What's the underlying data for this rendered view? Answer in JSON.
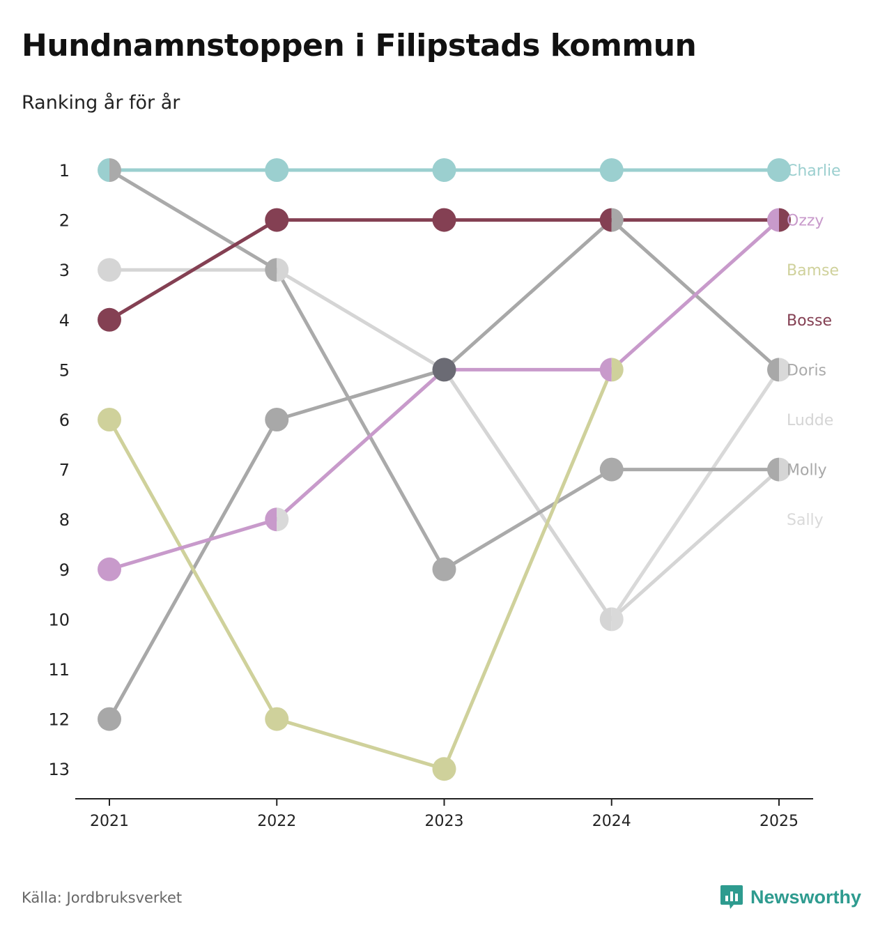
{
  "title": "Hundnamnstoppen i Filipstads kommun",
  "subtitle": "Ranking år för år",
  "source": "Källa: Jordbruksverket",
  "brand": {
    "name": "Newsworthy",
    "icon": "newsworthy-logo-icon",
    "color": "#2e9b8f"
  },
  "chart_data": {
    "type": "line",
    "subtype": "bump",
    "x": [
      "2021",
      "2022",
      "2023",
      "2024",
      "2025"
    ],
    "y_ticks": [
      "1",
      "2",
      "3",
      "4",
      "5",
      "6",
      "7",
      "8",
      "9",
      "10",
      "11",
      "12",
      "13"
    ],
    "ylim": [
      1,
      13
    ],
    "y_inverted": true,
    "xlabel": "",
    "ylabel": "",
    "legend": "right-end labels",
    "series": [
      {
        "name": "Charlie",
        "color": "#9bcfcf",
        "values": [
          1,
          1,
          1,
          1,
          1
        ]
      },
      {
        "name": "Ozzy",
        "color": "#c89acb",
        "values": [
          9,
          8,
          5,
          5,
          2
        ]
      },
      {
        "name": "Bamse",
        "color": "#cfd19b",
        "values": [
          6,
          12,
          13,
          5,
          null
        ]
      },
      {
        "name": "Bosse",
        "color": "#844053",
        "values": [
          4,
          2,
          2,
          2,
          2
        ]
      },
      {
        "name": "Doris",
        "color": "#aaaaaa",
        "values": [
          1,
          3,
          9,
          7,
          7
        ]
      },
      {
        "name": "Ludde",
        "color": "#d5d5d5",
        "values": [
          3,
          3,
          5,
          10,
          7
        ]
      },
      {
        "name": "Molly",
        "color": "#a8a8a8",
        "values": [
          12,
          6,
          5,
          2,
          5
        ]
      },
      {
        "name": "Sally",
        "color": "#d9d9d9",
        "values": [
          null,
          8,
          5,
          10,
          5
        ]
      }
    ],
    "tie_marker_color": "#6b6b74"
  }
}
